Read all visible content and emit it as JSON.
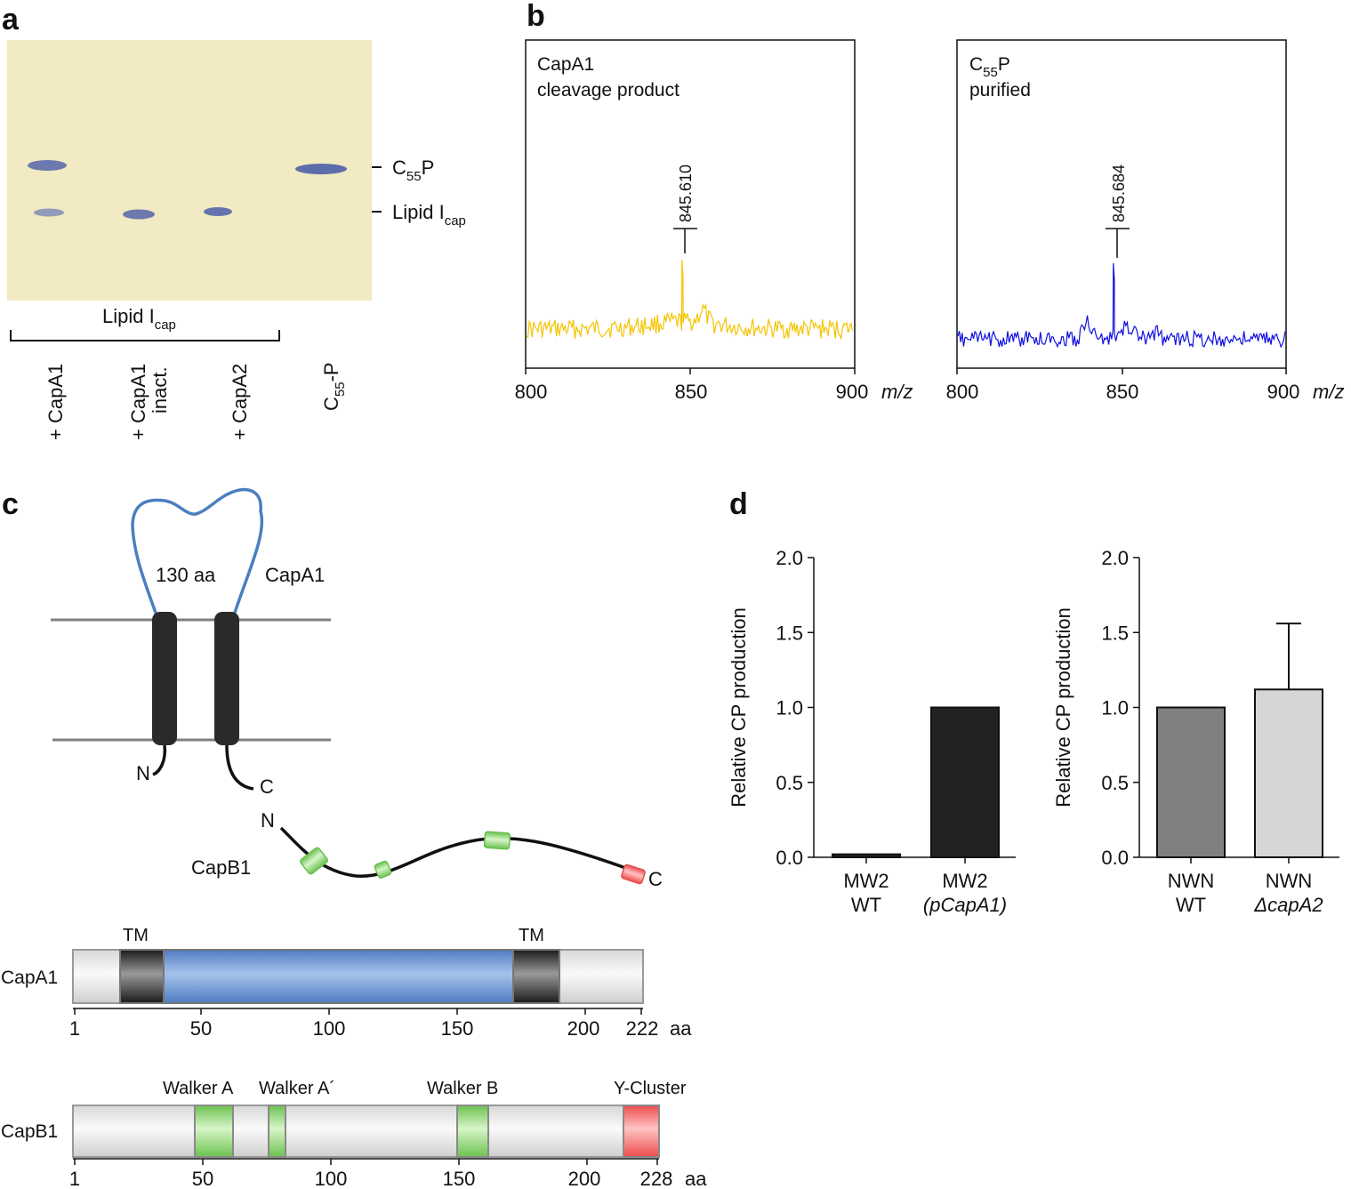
{
  "panel_labels": {
    "a": "a",
    "b": "b",
    "c": "c",
    "d": "d"
  },
  "panel_a": {
    "band_labels": {
      "c55p_main": "C",
      "c55p_sub": "55",
      "c55p_tail": "P",
      "lipid_main": "Lipid I",
      "lipid_sub": "cap"
    },
    "group_label": {
      "main": "Lipid I",
      "sub": "cap"
    },
    "lanes": {
      "l1": "+ CapA1",
      "l2a": "+ CapA1",
      "l2b": "inact.",
      "l3": "+ CapA2",
      "l4_main": "C",
      "l4_sub": "55",
      "l4_tail": "-P"
    },
    "colors": {
      "gel": "#f1eac2",
      "band": "#5060a8"
    }
  },
  "panel_b": {
    "spectra": [
      {
        "title1": "CapA1",
        "title2": "cleavage product",
        "peak_label": "845.610",
        "color": "#f5c400",
        "x_ticks": [
          "800",
          "850",
          "900"
        ],
        "x_unit": "m/z",
        "peak_mz": 847.5,
        "x_range": [
          800,
          900
        ]
      },
      {
        "title1_main": "C",
        "title1_sub": "55",
        "title1_tail": "P",
        "title2": "purified",
        "peak_label": "845.684",
        "color": "#1010e0",
        "x_ticks": [
          "800",
          "850",
          "900"
        ],
        "x_unit": "m/z",
        "peak_mz": 847.5,
        "x_range": [
          800,
          900
        ]
      }
    ]
  },
  "panel_c": {
    "loop_label": "130 aa",
    "capa1_label": "CapA1",
    "capa1_n": "N",
    "capa1_c": "C",
    "capb1_n": "N",
    "capb1_label": "CapB1",
    "capb1_c": "C",
    "capa1_bar": {
      "name": "CapA1",
      "length": 222,
      "domains": [
        {
          "label": "TM",
          "start": 19,
          "end": 36,
          "color": "#555555"
        },
        {
          "label": "",
          "start": 36,
          "end": 172,
          "color": "#7ea2d8"
        },
        {
          "label": "TM",
          "start": 172,
          "end": 190,
          "color": "#555555"
        }
      ],
      "ticks": [
        "1",
        "50",
        "100",
        "150",
        "200",
        "222"
      ],
      "unit": "aa"
    },
    "capb1_bar": {
      "name": "CapB1",
      "length": 228,
      "domains": [
        {
          "label": "Walker A",
          "start": 47,
          "end": 62,
          "color": "#8fd67a"
        },
        {
          "label": "Walker A´",
          "start": 76,
          "end": 82,
          "color": "#8fd67a"
        },
        {
          "label": "Walker B",
          "start": 152,
          "end": 164,
          "color": "#8fd67a"
        },
        {
          "label": "Y-Cluster",
          "start": 214,
          "end": 228,
          "color": "#f07070"
        }
      ],
      "ticks": [
        "1",
        "50",
        "100",
        "150",
        "200",
        "228"
      ],
      "unit": "aa"
    }
  },
  "chart_data": [
    {
      "type": "bar",
      "title": "",
      "xlabel": "",
      "ylabel": "Relative CP production",
      "ylim": [
        0,
        2.0
      ],
      "yticks": [
        "0.0",
        "0.5",
        "1.0",
        "1.5",
        "2.0"
      ],
      "categories": [
        {
          "line1": "MW2",
          "line2": "WT",
          "italic2": false
        },
        {
          "line1": "MW2",
          "line2": "(pCapA1)",
          "italic2": true
        }
      ],
      "values": [
        0.02,
        1.0
      ],
      "errors": [
        0,
        0
      ],
      "colors": [
        "#222222",
        "#222222"
      ]
    },
    {
      "type": "bar",
      "title": "",
      "xlabel": "",
      "ylabel": "Relative CP production",
      "ylim": [
        0,
        2.0
      ],
      "yticks": [
        "0.0",
        "0.5",
        "1.0",
        "1.5",
        "2.0"
      ],
      "categories": [
        {
          "line1": "NWN",
          "line2": "WT",
          "italic2": false
        },
        {
          "line1": "NWN",
          "line2": "ΔcapA2",
          "italic2": true
        }
      ],
      "values": [
        1.0,
        1.12
      ],
      "errors": [
        0,
        0.44
      ],
      "colors": [
        "#808080",
        "#d6d6d6"
      ]
    }
  ]
}
